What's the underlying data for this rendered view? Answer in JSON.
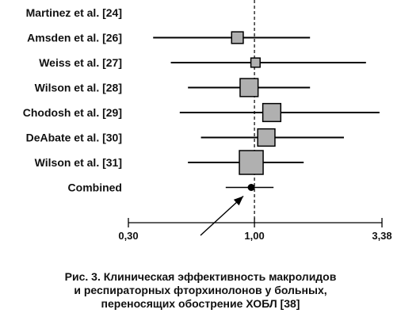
{
  "chart_data": {
    "type": "forest",
    "scale": "log",
    "xlim": [
      0.3,
      3.38
    ],
    "reference_line": 1.0,
    "xticks": [
      {
        "value": 0.3,
        "label": "0,30"
      },
      {
        "value": 1.0,
        "label": "1,00"
      },
      {
        "value": 3.38,
        "label": "3,38"
      }
    ],
    "colors": {
      "box": "#b0b0b0",
      "line": "#000000",
      "point": "#000000"
    },
    "studies": [
      {
        "label": "Martinez et al. [24]",
        "estimate": null,
        "lower": null,
        "upper": null,
        "weight": null
      },
      {
        "label": "Amsden et al. [26]",
        "estimate": 0.85,
        "lower": 0.38,
        "upper": 1.7,
        "weight": 0.15
      },
      {
        "label": "Weiss et al. [27]",
        "estimate": 1.01,
        "lower": 0.45,
        "upper": 2.9,
        "weight": 0.07
      },
      {
        "label": "Wilson et al. [28]",
        "estimate": 0.95,
        "lower": 0.53,
        "upper": 1.7,
        "weight": 0.5
      },
      {
        "label": "Chodosh et al. [29]",
        "estimate": 1.18,
        "lower": 0.49,
        "upper": 3.3,
        "weight": 0.5
      },
      {
        "label": "DeAbate et al. [30]",
        "estimate": 1.12,
        "lower": 0.6,
        "upper": 2.35,
        "weight": 0.45
      },
      {
        "label": "Wilson et al. [31]",
        "estimate": 0.97,
        "lower": 0.53,
        "upper": 1.6,
        "weight": 1.0
      }
    ],
    "combined": {
      "label": "Combined",
      "estimate": 0.97,
      "lower": 0.76,
      "upper": 1.2
    }
  },
  "caption": {
    "line1": "Рис. 3. Клиническая эффективность макролидов",
    "line2": "и респираторных фторхинолонов у больных,",
    "line3": "переносящих обострение ХОБЛ [38]"
  }
}
